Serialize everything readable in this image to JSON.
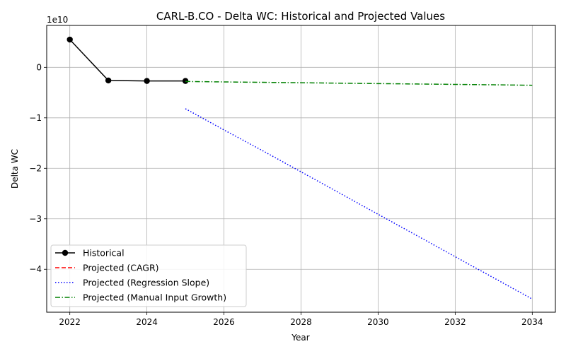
{
  "chart_data": {
    "type": "line",
    "title": "CARL-B.CO - Delta WC: Historical and Projected Values",
    "xlabel": "Year",
    "ylabel": "Delta WC",
    "y_scale_label": "1e10",
    "xlim": [
      2021.4,
      2034.6
    ],
    "ylim": [
      -4.85,
      0.83
    ],
    "x_ticks": [
      2022,
      2024,
      2026,
      2028,
      2030,
      2032,
      2034
    ],
    "y_ticks": [
      0,
      -1,
      -2,
      -3,
      -4
    ],
    "y_tick_labels": [
      "0",
      "−1",
      "−2",
      "−3",
      "−4"
    ],
    "grid": true,
    "legend_position": "lower-left",
    "series": [
      {
        "name": "Historical",
        "color": "#000000",
        "style": "solid-markers",
        "points": [
          [
            2022,
            0.55
          ],
          [
            2023,
            -0.26
          ],
          [
            2024,
            -0.27
          ],
          [
            2025,
            -0.27
          ]
        ]
      },
      {
        "name": "Projected (CAGR)",
        "color": "#ff0000",
        "style": "dashed",
        "points": []
      },
      {
        "name": "Projected (Regression Slope)",
        "color": "#0000ff",
        "style": "dotted",
        "points": [
          [
            2025,
            -0.82
          ],
          [
            2026,
            -1.24
          ],
          [
            2027,
            -1.65
          ],
          [
            2028,
            -2.07
          ],
          [
            2029,
            -2.49
          ],
          [
            2030,
            -2.91
          ],
          [
            2031,
            -3.33
          ],
          [
            2032,
            -3.75
          ],
          [
            2033,
            -4.17
          ],
          [
            2034,
            -4.59
          ]
        ]
      },
      {
        "name": "Projected (Manual Input Growth)",
        "color": "#008000",
        "style": "dashdot",
        "points": [
          [
            2025,
            -0.28
          ],
          [
            2026,
            -0.289
          ],
          [
            2027,
            -0.297
          ],
          [
            2028,
            -0.305
          ],
          [
            2029,
            -0.314
          ],
          [
            2030,
            -0.322
          ],
          [
            2031,
            -0.33
          ],
          [
            2032,
            -0.338
          ],
          [
            2033,
            -0.346
          ],
          [
            2034,
            -0.355
          ]
        ]
      }
    ]
  }
}
